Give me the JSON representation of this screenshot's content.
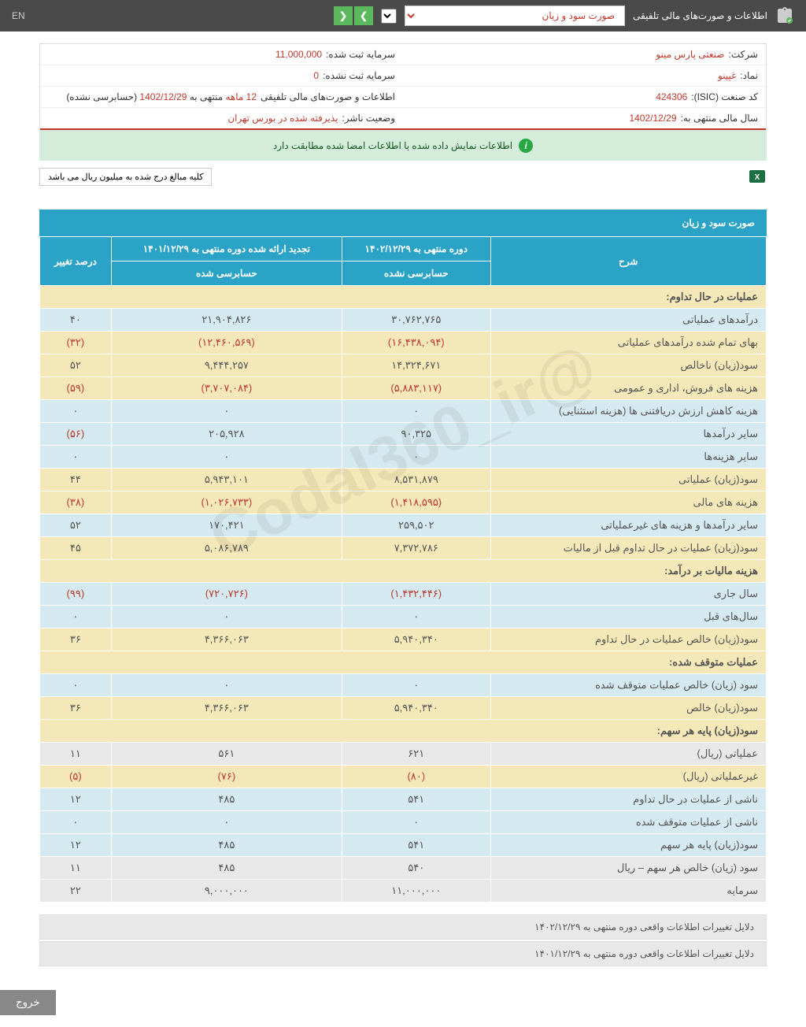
{
  "topbar": {
    "title": "اطلاعات و صورت‌های مالی تلفیقی",
    "lang": "EN",
    "dropdown": "صورت سود و زیان"
  },
  "info": {
    "company_label": "شرکت:",
    "company_value": "صنعتی پارس مینو",
    "capital_reg_label": "سرمایه ثبت شده:",
    "capital_reg_value": "11,000,000",
    "symbol_label": "نماد:",
    "symbol_value": "غپینو",
    "capital_unreg_label": "سرمایه ثبت نشده:",
    "capital_unreg_value": "0",
    "isic_label": "کد صنعت (ISIC):",
    "isic_value": "424306",
    "report_label": "اطلاعات و صورت‌های مالی تلفیقی",
    "report_period": "12 ماهه",
    "report_ending": "منتهی به",
    "report_date": "1402/12/29",
    "report_audit": "(حسابرسی نشده)",
    "fiscal_label": "سال مالی منتهی به:",
    "fiscal_value": "1402/12/29",
    "publisher_label": "وضعیت ناشر:",
    "publisher_value": "پذیرفته شده در بورس تهران"
  },
  "alert": "اطلاعات نمایش داده شده با اطلاعات امضا شده مطابقت دارد",
  "note": "کلیه مبالغ درج شده به میلیون ریال می باشد",
  "table": {
    "title": "صورت سود و زیان",
    "h1": "شرح",
    "h2": "دوره منتهی به ۱۴۰۲/۱۲/۲۹",
    "h3": "تجدید ارائه شده دوره منتهی به ۱۴۰۱/۱۲/۲۹",
    "h4": "درصد تغییر",
    "h2s": "حسابرسی نشده",
    "h3s": "حسابرسی شده",
    "rows": [
      {
        "type": "header",
        "desc": "عملیات در حال تداوم:"
      },
      {
        "type": "blue",
        "desc": "درآمدهای عملیاتی",
        "c1": "۳۰,۷۶۲,۷۶۵",
        "c2": "۲۱,۹۰۴,۸۲۶",
        "c3": "۴۰"
      },
      {
        "type": "yellow",
        "desc": "بهای تمام شده درآمدهای عملیاتی",
        "c1": "(۱۶,۴۳۸,۰۹۴)",
        "c1n": true,
        "c2": "(۱۲,۴۶۰,۵۶۹)",
        "c2n": true,
        "c3": "(۳۲)",
        "c3n": true
      },
      {
        "type": "yellow",
        "desc": "سود(زیان) ناخالص",
        "c1": "۱۴,۳۲۴,۶۷۱",
        "c2": "۹,۴۴۴,۲۵۷",
        "c3": "۵۲"
      },
      {
        "type": "yellow",
        "desc": "هزینه های فروش، اداری و عمومی",
        "c1": "(۵,۸۸۳,۱۱۷)",
        "c1n": true,
        "c2": "(۳,۷۰۷,۰۸۴)",
        "c2n": true,
        "c3": "(۵۹)",
        "c3n": true
      },
      {
        "type": "blue",
        "desc": "هزینه کاهش ارزش دریافتنی ها (هزینه استثنایی)",
        "c1": "۰",
        "c2": "۰",
        "c3": "۰"
      },
      {
        "type": "blue",
        "desc": "سایر درآمدها",
        "c1": "۹۰,۳۲۵",
        "c2": "۲۰۵,۹۲۸",
        "c3": "(۵۶)",
        "c3n": true
      },
      {
        "type": "blue",
        "desc": "سایر هزینه‌ها",
        "c1": "۰",
        "c2": "۰",
        "c3": "۰"
      },
      {
        "type": "yellow",
        "desc": "سود(زیان) عملیاتی",
        "c1": "۸,۵۳۱,۸۷۹",
        "c2": "۵,۹۴۳,۱۰۱",
        "c3": "۴۴"
      },
      {
        "type": "yellow",
        "desc": "هزینه های مالی",
        "c1": "(۱,۴۱۸,۵۹۵)",
        "c1n": true,
        "c2": "(۱,۰۲۶,۷۳۳)",
        "c2n": true,
        "c3": "(۳۸)",
        "c3n": true
      },
      {
        "type": "blue",
        "desc": "سایر درآمدها و هزینه های غیرعملیاتی",
        "c1": "۲۵۹,۵۰۲",
        "c2": "۱۷۰,۴۲۱",
        "c3": "۵۲"
      },
      {
        "type": "yellow",
        "desc": "سود(زیان) عملیات در حال تداوم قبل از مالیات",
        "c1": "۷,۳۷۲,۷۸۶",
        "c2": "۵,۰۸۶,۷۸۹",
        "c3": "۴۵"
      },
      {
        "type": "header",
        "desc": "هزینه مالیات بر درآمد:"
      },
      {
        "type": "blue",
        "desc": "سال جاری",
        "c1": "(۱,۴۳۲,۴۴۶)",
        "c1n": true,
        "c2": "(۷۲۰,۷۲۶)",
        "c2n": true,
        "c3": "(۹۹)",
        "c3n": true
      },
      {
        "type": "blue",
        "desc": "سال‌های قبل",
        "c1": "۰",
        "c2": "۰",
        "c3": "۰"
      },
      {
        "type": "yellow",
        "desc": "سود(زیان) خالص عملیات در حال تداوم",
        "c1": "۵,۹۴۰,۳۴۰",
        "c2": "۴,۳۶۶,۰۶۳",
        "c3": "۳۶"
      },
      {
        "type": "header",
        "desc": "عملیات متوقف شده:"
      },
      {
        "type": "blue",
        "desc": "سود (زیان) خالص عملیات متوقف شده",
        "c1": "۰",
        "c2": "۰",
        "c3": "۰"
      },
      {
        "type": "yellow",
        "desc": "سود(زیان) خالص",
        "c1": "۵,۹۴۰,۳۴۰",
        "c2": "۴,۳۶۶,۰۶۳",
        "c3": "۳۶"
      },
      {
        "type": "header",
        "desc": "سود(زیان) پایه هر سهم:"
      },
      {
        "type": "gray",
        "desc": "عملیاتی (ریال)",
        "c1": "۶۲۱",
        "c2": "۵۶۱",
        "c3": "۱۱"
      },
      {
        "type": "yellow",
        "desc": "غیرعملیاتی (ریال)",
        "c1": "(۸۰)",
        "c1n": true,
        "c2": "(۷۶)",
        "c2n": true,
        "c3": "(۵)",
        "c3n": true
      },
      {
        "type": "blue",
        "desc": "ناشی از عملیات در حال تداوم",
        "c1": "۵۴۱",
        "c2": "۴۸۵",
        "c3": "۱۲"
      },
      {
        "type": "blue",
        "desc": "ناشی از عملیات متوقف شده",
        "c1": "۰",
        "c2": "۰",
        "c3": "۰"
      },
      {
        "type": "blue",
        "desc": "سود(زیان) پایه هر سهم",
        "c1": "۵۴۱",
        "c2": "۴۸۵",
        "c3": "۱۲"
      },
      {
        "type": "gray",
        "desc": "سود (زیان) خالص هر سهم – ریال",
        "c1": "۵۴۰",
        "c2": "۴۸۵",
        "c3": "۱۱"
      },
      {
        "type": "gray",
        "desc": "سرمایه",
        "c1": "۱۱,۰۰۰,۰۰۰",
        "c2": "۹,۰۰۰,۰۰۰",
        "c3": "۲۲"
      }
    ]
  },
  "footers": [
    "دلایل تغییرات اطلاعات واقعی دوره منتهی به ۱۴۰۲/۱۲/۲۹",
    "دلایل تغییرات اطلاعات واقعی دوره منتهی به ۱۴۰۱/۱۲/۲۹"
  ],
  "exit": "خروج",
  "watermark": "@Codal360_ir"
}
